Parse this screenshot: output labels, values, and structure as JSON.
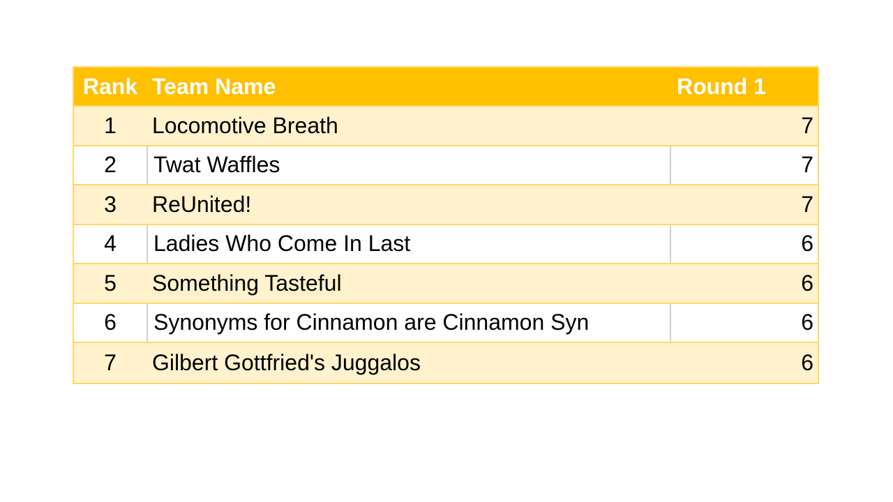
{
  "table": {
    "headers": [
      "Rank",
      "Team Name",
      "Round 1"
    ],
    "rows": [
      {
        "rank": "1",
        "team": "Locomotive Breath",
        "round1": "7"
      },
      {
        "rank": "2",
        "team": "Twat Waffles",
        "round1": "7"
      },
      {
        "rank": "3",
        "team": "ReUnited!",
        "round1": "7"
      },
      {
        "rank": "4",
        "team": "Ladies Who Come In Last",
        "round1": "6"
      },
      {
        "rank": "5",
        "team": "Something Tasteful",
        "round1": "6"
      },
      {
        "rank": "6",
        "team": "Synonyms for Cinnamon are Cinnamon Syn",
        "round1": "6"
      },
      {
        "rank": "7",
        "team": "Gilbert Gottfried's Juggalos",
        "round1": "6"
      }
    ],
    "colors": {
      "header": "#FFC000",
      "band": "#FFF2CC",
      "border": "#FFD966"
    }
  }
}
